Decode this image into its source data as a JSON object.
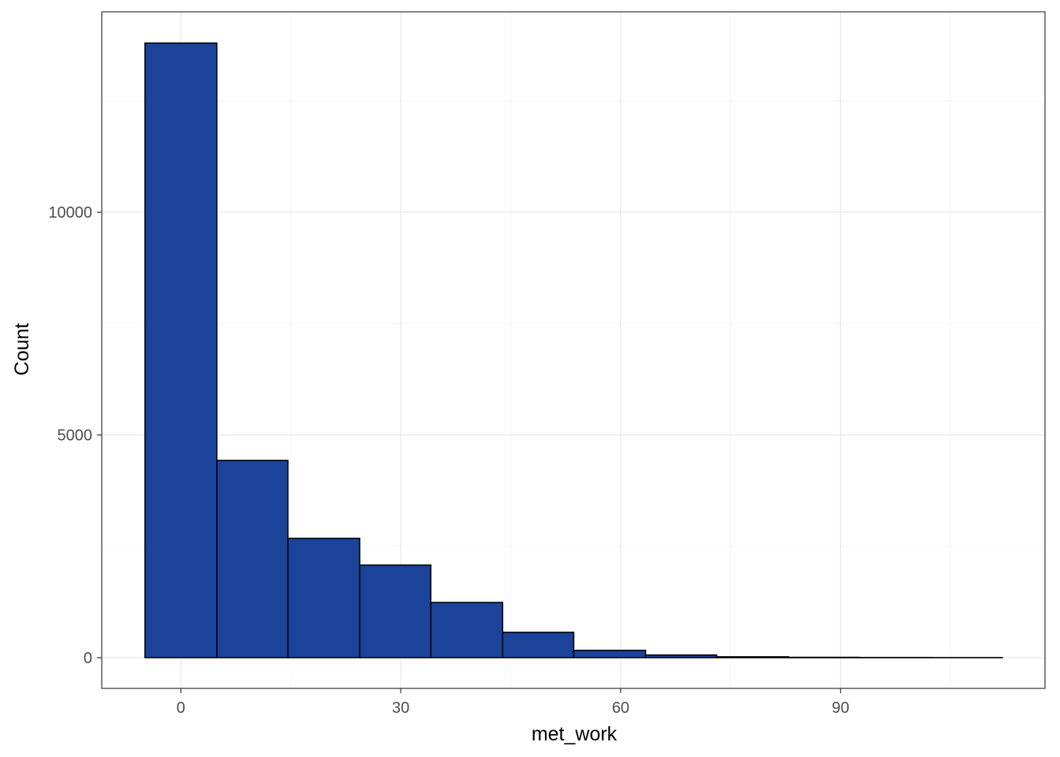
{
  "chart_data": {
    "type": "bar",
    "subtype": "histogram",
    "xlabel": "met_work",
    "ylabel": "Count",
    "xlim": [
      -10.8,
      117.9
    ],
    "ylim": [
      -690,
      14500
    ],
    "x_ticks": [
      0,
      30,
      60,
      90
    ],
    "x_minor_ticks": [
      15,
      45,
      75,
      105
    ],
    "y_ticks": [
      0,
      5000,
      10000
    ],
    "y_minor_ticks": [
      2500,
      7500,
      12500
    ],
    "grid": true,
    "bins": [
      {
        "x0": -4.9,
        "x1": 4.9,
        "count": 13800
      },
      {
        "x0": 4.9,
        "x1": 14.6,
        "count": 4430
      },
      {
        "x0": 14.6,
        "x1": 24.4,
        "count": 2680
      },
      {
        "x0": 24.4,
        "x1": 34.1,
        "count": 2080
      },
      {
        "x0": 34.1,
        "x1": 43.9,
        "count": 1240
      },
      {
        "x0": 43.9,
        "x1": 53.6,
        "count": 570
      },
      {
        "x0": 53.6,
        "x1": 63.4,
        "count": 165
      },
      {
        "x0": 63.4,
        "x1": 73.1,
        "count": 60
      },
      {
        "x0": 73.1,
        "x1": 82.9,
        "count": 20
      },
      {
        "x0": 82.9,
        "x1": 92.6,
        "count": 8
      },
      {
        "x0": 92.6,
        "x1": 102.4,
        "count": 4
      },
      {
        "x0": 102.4,
        "x1": 112.1,
        "count": 2
      }
    ],
    "colors": {
      "bar_fill": "#1A4399",
      "bar_stroke": "#000000",
      "grid_major": "#EBEBEB",
      "grid_minor": "#F5F5F5",
      "panel_border": "#333333",
      "tick_text": "#4D4D4D"
    }
  }
}
